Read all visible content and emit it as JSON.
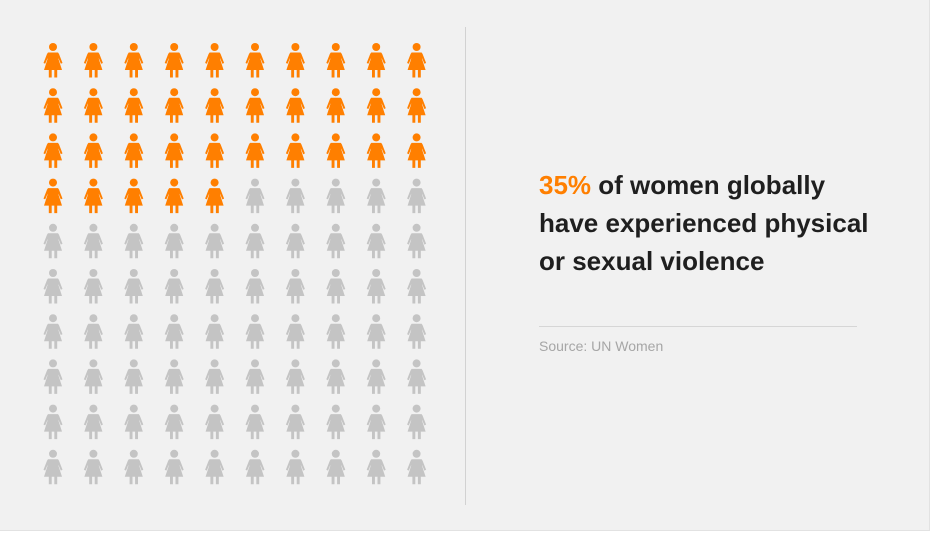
{
  "chart_data": {
    "type": "pictograph",
    "total_icons": 100,
    "highlighted_icons": 35,
    "grid": {
      "rows": 10,
      "columns": 10
    },
    "icon": "woman-icon",
    "colors": {
      "highlighted": "#ff7f00",
      "rest": "#c4c4c4"
    }
  },
  "headline": {
    "percent": "35%",
    "rest": " of women globally have experienced physical or sexual violence"
  },
  "source": "Source: UN Women"
}
